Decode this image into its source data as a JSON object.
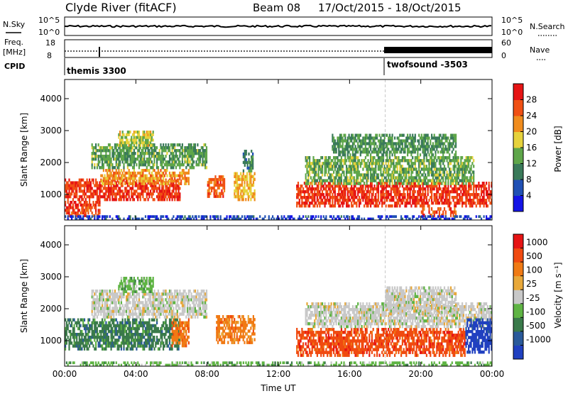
{
  "header": {
    "station": "Clyde River (fitACF)",
    "beam": "Beam 08",
    "date_range": "17/Oct/2015 - 18/Oct/2015"
  },
  "aux_panels": {
    "nsky_label": "N.Sky",
    "nsearch_label": "N.Search",
    "freq_label": "Freq.",
    "freq_unit": "[MHz]",
    "nave_label": "Nave",
    "cpid_label": "CPID",
    "left_top_ticks": [
      "10^5",
      "10^0"
    ],
    "right_top_ticks": [
      "10^5",
      "10^0"
    ],
    "freq_ticks": [
      "18",
      "8"
    ],
    "nave_ticks": [
      "60",
      "0"
    ],
    "cpid_segments": [
      {
        "name": "themis 3300",
        "start_hour": 0,
        "end_hour": 18
      },
      {
        "name": "twofsound -3503",
        "start_hour": 18,
        "end_hour": 24
      }
    ]
  },
  "colors": {
    "power_scale": [
      "#1414e6",
      "#2050b4",
      "#3a7a5a",
      "#5fa64a",
      "#e6d23c",
      "#f08c1e",
      "#f05014",
      "#e61414"
    ],
    "velocity_scale": [
      "#2040c0",
      "#2a5a9a",
      "#3a7a4a",
      "#5fb444",
      "#c8c8c8",
      "#e8a83a",
      "#f07a14",
      "#f04a10",
      "#e61414"
    ]
  },
  "chart_data": [
    {
      "type": "heatmap",
      "name": "power",
      "xlabel": "Time UT",
      "ylabel": "Slant Range [km]",
      "xlim": [
        0,
        24
      ],
      "ylim": [
        200,
        4600
      ],
      "x_ticks": [
        "00:00",
        "04:00",
        "08:00",
        "12:00",
        "16:00",
        "20:00",
        "00:00"
      ],
      "y_ticks": [
        1000,
        2000,
        3000,
        4000
      ],
      "colorbar": {
        "label": "Power [dB]",
        "ticks": [
          4,
          8,
          12,
          16,
          20,
          24,
          28
        ],
        "range": [
          0,
          32
        ]
      },
      "bands": [
        {
          "t0": 0.0,
          "t1": 6.5,
          "r0": 800,
          "r1": 1500,
          "value": 28
        },
        {
          "t0": 2.0,
          "t1": 7.0,
          "r0": 1300,
          "r1": 1800,
          "value": 22
        },
        {
          "t0": 1.5,
          "t1": 8.0,
          "r0": 1800,
          "r1": 2600,
          "value": 13
        },
        {
          "t0": 3.0,
          "t1": 5.0,
          "r0": 2500,
          "r1": 3000,
          "value": 17
        },
        {
          "t0": 0.0,
          "t1": 2.0,
          "r0": 300,
          "r1": 800,
          "value": 27
        },
        {
          "t0": 8.0,
          "t1": 9.0,
          "r0": 900,
          "r1": 1600,
          "value": 26
        },
        {
          "t0": 9.5,
          "t1": 10.7,
          "r0": 800,
          "r1": 1700,
          "value": 20
        },
        {
          "t0": 10.0,
          "t1": 10.6,
          "r0": 1700,
          "r1": 2400,
          "value": 10
        },
        {
          "t0": 13.0,
          "t1": 24.0,
          "r0": 600,
          "r1": 1400,
          "value": 28
        },
        {
          "t0": 13.5,
          "t1": 23.0,
          "r0": 1300,
          "r1": 2200,
          "value": 14
        },
        {
          "t0": 15.0,
          "t1": 22.0,
          "r0": 2200,
          "r1": 2900,
          "value": 12
        },
        {
          "t0": 20.0,
          "t1": 22.0,
          "r0": 300,
          "r1": 600,
          "value": 26
        },
        {
          "t0": 0.0,
          "t1": 24.0,
          "r0": 200,
          "r1": 350,
          "value": 5
        }
      ]
    },
    {
      "type": "heatmap",
      "name": "velocity",
      "xlabel": "Time UT",
      "ylabel": "Slant Range [km]",
      "xlim": [
        0,
        24
      ],
      "ylim": [
        200,
        4600
      ],
      "x_ticks": [
        "00:00",
        "04:00",
        "08:00",
        "12:00",
        "16:00",
        "20:00",
        "00:00"
      ],
      "y_ticks": [
        1000,
        2000,
        3000,
        4000
      ],
      "colorbar": {
        "label": "Velocity [m s⁻¹]",
        "ticks": [
          "1000",
          "500",
          "100",
          "25",
          "-25",
          "-100",
          "-500",
          "-1000"
        ]
      },
      "bands": [
        {
          "t0": 0.0,
          "t1": 6.5,
          "r0": 700,
          "r1": 1700,
          "cat": 2
        },
        {
          "t0": 1.5,
          "t1": 8.0,
          "r0": 1700,
          "r1": 2600,
          "cat": 4
        },
        {
          "t0": 3.0,
          "t1": 5.0,
          "r0": 2500,
          "r1": 3000,
          "cat": 3
        },
        {
          "t0": 6.0,
          "t1": 7.0,
          "r0": 800,
          "r1": 1700,
          "cat": 6
        },
        {
          "t0": 8.5,
          "t1": 10.7,
          "r0": 900,
          "r1": 1800,
          "cat": 6
        },
        {
          "t0": 13.0,
          "t1": 22.5,
          "r0": 500,
          "r1": 1400,
          "cat": 7
        },
        {
          "t0": 13.5,
          "t1": 24.0,
          "r0": 1400,
          "r1": 2200,
          "cat": 4
        },
        {
          "t0": 18.0,
          "t1": 22.0,
          "r0": 1800,
          "r1": 2700,
          "cat": 4
        },
        {
          "t0": 22.5,
          "t1": 24.0,
          "r0": 600,
          "r1": 1700,
          "cat": 0
        },
        {
          "t0": 0.0,
          "t1": 24.0,
          "r0": 200,
          "r1": 350,
          "cat": 3
        }
      ]
    }
  ]
}
